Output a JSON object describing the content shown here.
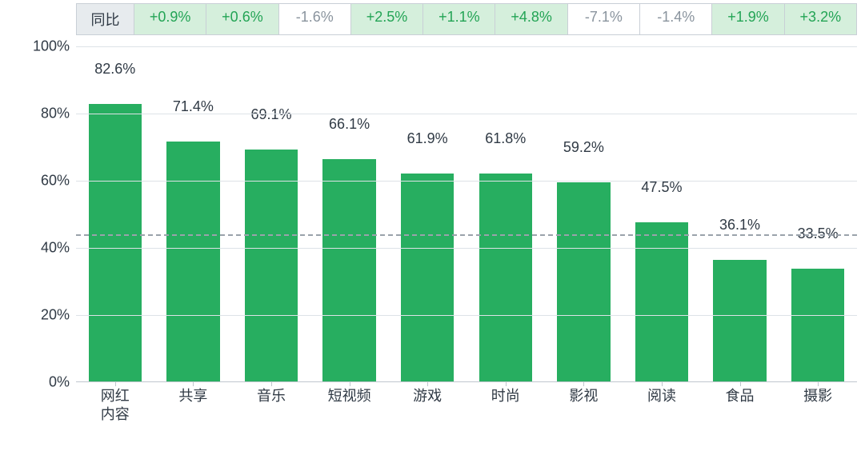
{
  "yoy": {
    "header_label": "同比",
    "cells": [
      {
        "text": "+0.9%",
        "positive": true
      },
      {
        "text": "+0.6%",
        "positive": true
      },
      {
        "text": "-1.6%",
        "positive": false
      },
      {
        "text": "+2.5%",
        "positive": true
      },
      {
        "text": "+1.1%",
        "positive": true
      },
      {
        "text": "+4.8%",
        "positive": true
      },
      {
        "text": "-7.1%",
        "positive": false
      },
      {
        "text": "-1.4%",
        "positive": false
      },
      {
        "text": "+1.9%",
        "positive": true
      },
      {
        "text": "+3.2%",
        "positive": true
      }
    ],
    "positive_bg": "#d5efdc",
    "positive_color": "#23a455",
    "negative_bg": "#ffffff",
    "negative_color": "#8a949e",
    "header_bg": "#e7ebee",
    "border_color": "#c9cfd6"
  },
  "chart": {
    "type": "bar",
    "categories": [
      "网红\n内容",
      "共享",
      "音乐",
      "短视频",
      "游戏",
      "时尚",
      "影视",
      "阅读",
      "食品",
      "摄影"
    ],
    "values": [
      82.6,
      71.4,
      69.1,
      66.1,
      61.9,
      61.8,
      59.2,
      47.5,
      36.1,
      33.5
    ],
    "value_labels": [
      "82.6%",
      "71.4%",
      "69.1%",
      "66.1%",
      "61.9%",
      "61.8%",
      "59.2%",
      "47.5%",
      "36.1%",
      "33.5%"
    ],
    "bar_color": "#27ae60",
    "y_min": 0,
    "y_max": 100,
    "y_ticks": [
      0,
      20,
      40,
      60,
      80,
      100
    ],
    "y_tick_labels": [
      "0%",
      "20%",
      "40%",
      "60%",
      "80%",
      "100%"
    ],
    "reference_line": 44,
    "grid_color": "#dde2e7",
    "refline_color": "#9aa2ab",
    "axis_color": "#c0c7ce",
    "text_color": "#303a45",
    "label_fontsize": 18,
    "tick_fontsize": 18,
    "bar_width_ratio": 0.68,
    "background_color": "#ffffff"
  }
}
